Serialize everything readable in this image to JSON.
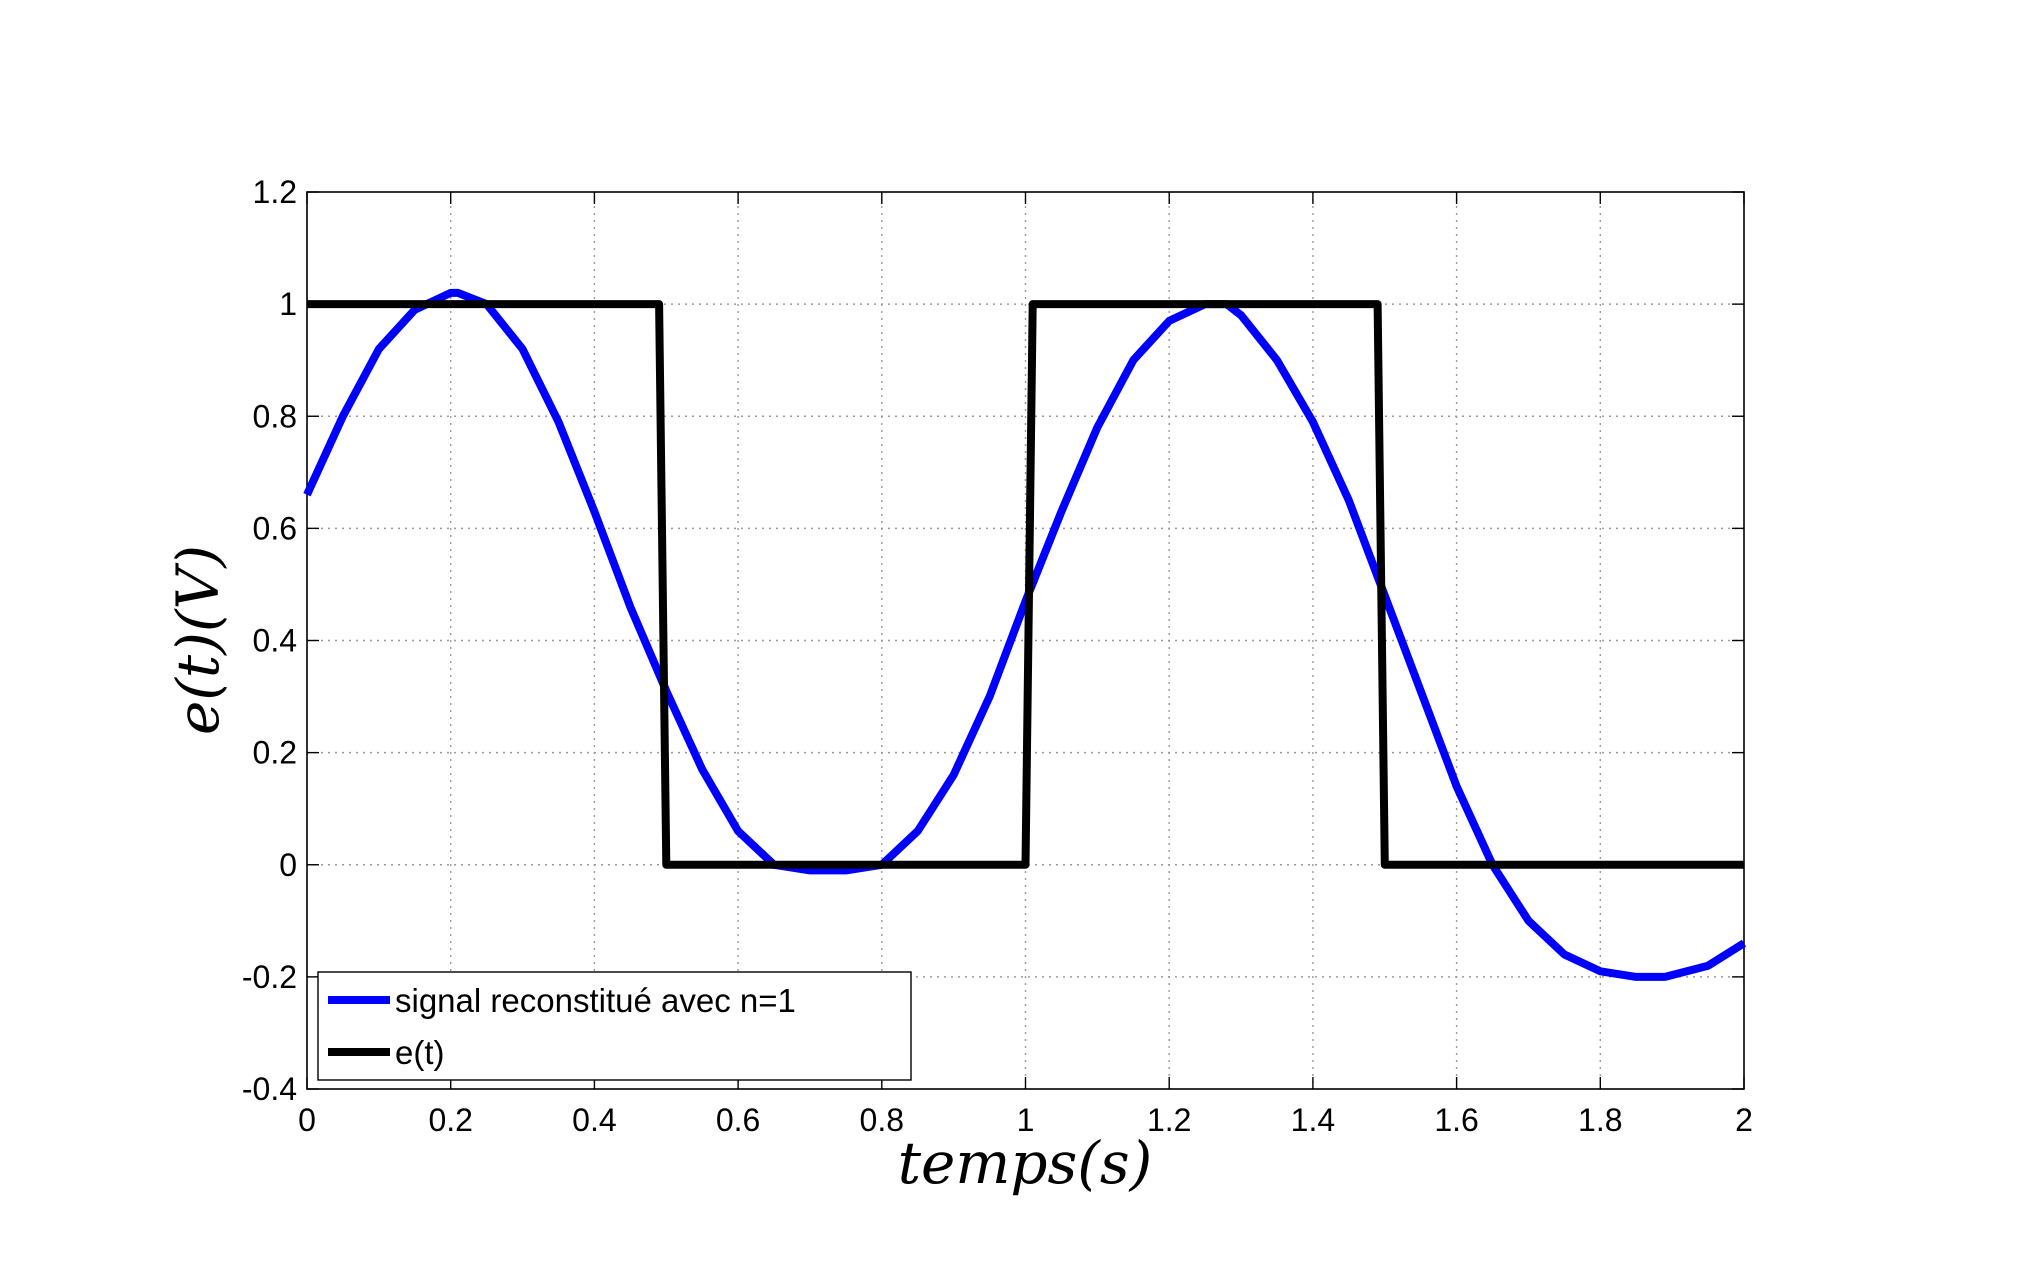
{
  "chart_data": {
    "type": "line",
    "title": "",
    "xlabel": "temps(s)",
    "ylabel": "e(t)(V)",
    "xlim": [
      0,
      2
    ],
    "ylim": [
      -0.4,
      1.2
    ],
    "xticks": [
      0,
      0.2,
      0.4,
      0.6,
      0.8,
      1,
      1.2,
      1.4,
      1.6,
      1.8,
      2
    ],
    "xtick_labels": [
      "0",
      "0.2",
      "0.4",
      "0.6",
      "0.8",
      "1",
      "1.2",
      "1.4",
      "1.6",
      "1.8",
      "2"
    ],
    "yticks": [
      -0.4,
      -0.2,
      0,
      0.2,
      0.4,
      0.6,
      0.8,
      1,
      1.2
    ],
    "ytick_labels": [
      "-0.4",
      "-0.2",
      "0",
      "0.2",
      "0.4",
      "0.6",
      "0.8",
      "1",
      "1.2"
    ],
    "grid": true,
    "legend_position": "bottom-left",
    "series": [
      {
        "name": "signal reconstitué avec n=1",
        "color": "#0000ff",
        "x": [
          0,
          0.05,
          0.1,
          0.15,
          0.2,
          0.21,
          0.25,
          0.3,
          0.35,
          0.4,
          0.45,
          0.5,
          0.55,
          0.6,
          0.65,
          0.7,
          0.75,
          0.8,
          0.85,
          0.9,
          0.95,
          1.0,
          1.05,
          1.1,
          1.15,
          1.2,
          1.25,
          1.28,
          1.3,
          1.35,
          1.4,
          1.45,
          1.5,
          1.55,
          1.6,
          1.65,
          1.7,
          1.75,
          1.8,
          1.85,
          1.89,
          1.95,
          2.0
        ],
        "y": [
          0.66,
          0.8,
          0.92,
          0.99,
          1.02,
          1.02,
          1.0,
          0.92,
          0.79,
          0.63,
          0.46,
          0.31,
          0.17,
          0.06,
          0.0,
          -0.01,
          -0.01,
          0.0,
          0.06,
          0.16,
          0.3,
          0.47,
          0.63,
          0.78,
          0.9,
          0.97,
          1.0,
          1.0,
          0.98,
          0.9,
          0.79,
          0.65,
          0.48,
          0.31,
          0.14,
          0.0,
          -0.1,
          -0.16,
          -0.19,
          -0.2,
          -0.2,
          -0.18,
          -0.14
        ]
      },
      {
        "name": "e(t)",
        "color": "#000000",
        "x": [
          0,
          0.49,
          0.5,
          1.0,
          1.01,
          1.49,
          1.5,
          2.0
        ],
        "y": [
          1,
          1,
          0,
          0,
          1,
          1,
          0,
          0
        ]
      }
    ]
  }
}
